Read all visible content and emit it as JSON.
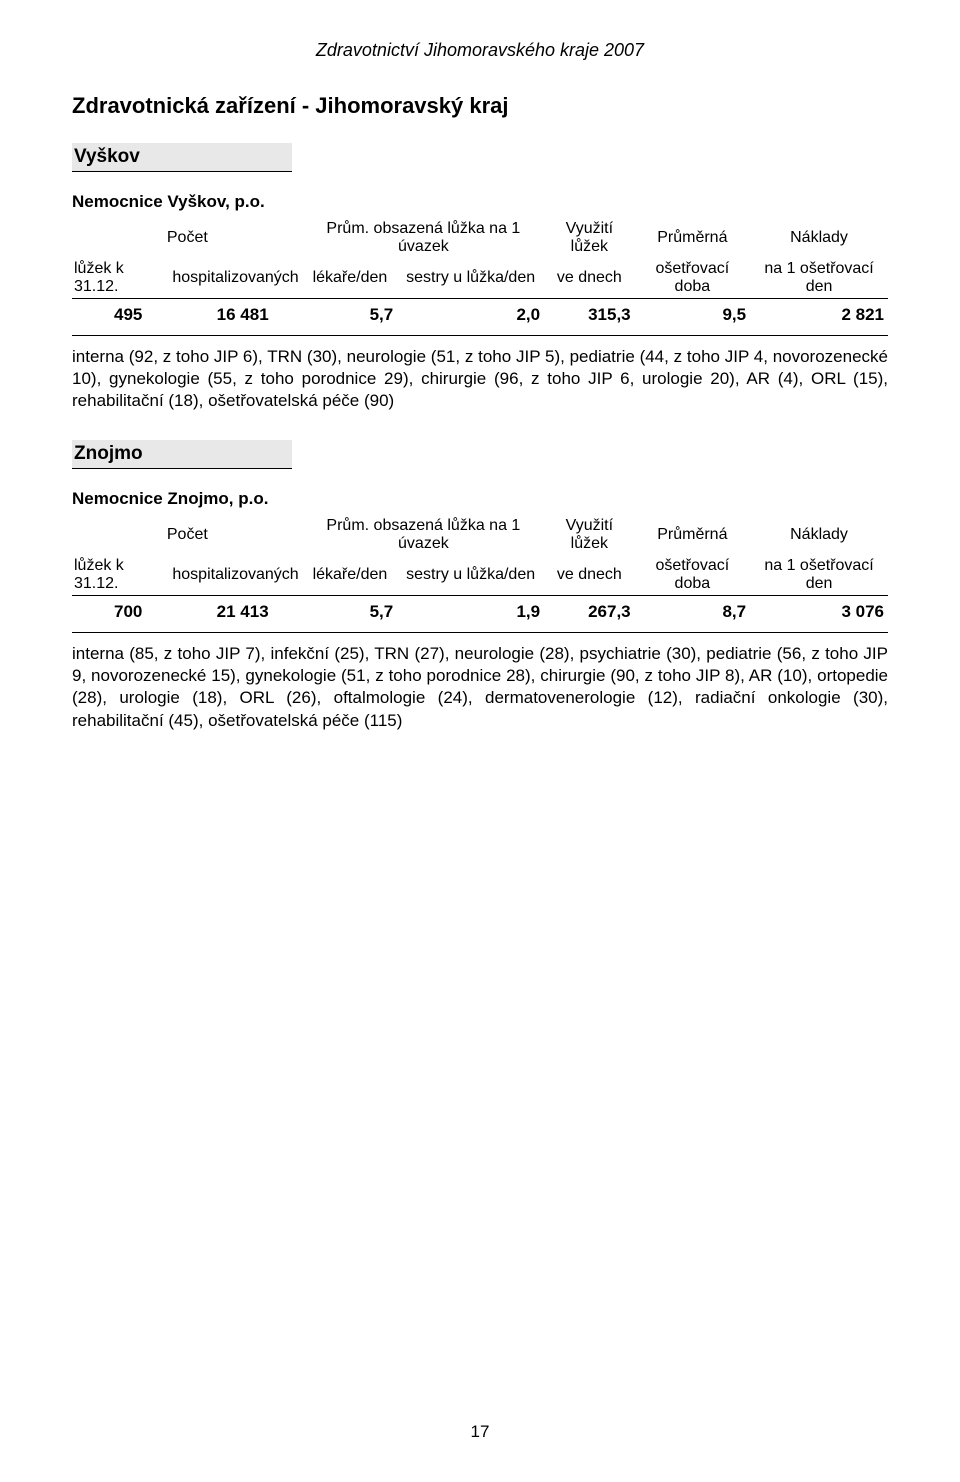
{
  "header": {
    "title": "Zdravotnictví Jihomoravského kraje 2007"
  },
  "main_title": "Zdravotnická zařízení - Jihomoravský kraj",
  "page_number": "17",
  "table_headers": {
    "pocet": "Počet",
    "prum": "Prům. obsazená lůžka na 1 úvazek",
    "vyuziti": "Využití lůžek",
    "prumerna": "Průměrná",
    "naklady": "Náklady",
    "luzek": "lůžek k 31.12.",
    "hospitalizovanych": "hospitalizovaných",
    "lekare": "lékaře/den",
    "sestry": "sestry u lůžka/den",
    "vednech": "ve dnech",
    "osetrovaci_doba": "ošetřovací doba",
    "na1": "na 1 ošetřovací den"
  },
  "sections": [
    {
      "district": "Vyškov",
      "hospital_name": "Nemocnice Vyškov, p.o.",
      "data": {
        "luzek": "495",
        "hospitalizovanych": "16 481",
        "lekare": "5,7",
        "sestry": "2,0",
        "vyuziti": "315,3",
        "prumerna": "9,5",
        "naklady": "2 821"
      },
      "description": "interna (92, z toho JIP 6), TRN (30), neurologie (51, z toho JIP 5), pediatrie (44, z toho JIP 4, novorozenecké 10), gynekologie (55, z toho porodnice 29), chirurgie (96, z toho JIP 6, urologie 20), AR (4), ORL (15), rehabilitační (18), ošetřovatelská péče (90)"
    },
    {
      "district": "Znojmo",
      "hospital_name": "Nemocnice Znojmo, p.o.",
      "data": {
        "luzek": "700",
        "hospitalizovanych": "21 413",
        "lekare": "5,7",
        "sestry": "1,9",
        "vyuziti": "267,3",
        "prumerna": "8,7",
        "naklady": "3 076"
      },
      "description": "interna (85, z toho JIP 7), infekční (25), TRN (27), neurologie (28), psychiatrie (30), pediatrie (56, z toho JIP 9, novorozenecké 15), gynekologie (51, z toho porodnice 28), chirurgie (90, z toho JIP 8), AR (10), ortopedie (28), urologie (18), ORL (26), oftalmologie (24), dermatovenerologie (12), radiační onkologie (30), rehabilitační (45), ošetřovatelská péče (115)"
    }
  ]
}
